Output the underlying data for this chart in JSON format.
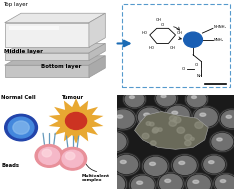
{
  "bg_color": "#ffffff",
  "top_left": {
    "labels": [
      "Top layer",
      "Middle layer",
      "Bottom layer"
    ]
  },
  "top_right": {
    "box_color": "#5599cc",
    "arrow_color": "#1a6bb5",
    "dot_color": "#1a5fb4"
  },
  "bottom_left": {
    "normal_cell_outer": "#2244aa",
    "normal_cell_inner": "#4488dd",
    "normal_cell_light": "#88bbee",
    "tumour_color": "#e8a832",
    "tumour_center_color": "#cc3322",
    "bead_color": "#f5b8c8",
    "bead_light": "#fdd8e0",
    "linker_color": "#6699bb"
  },
  "bottom_right": {
    "bg": "#1a1a1a",
    "sphere_dark": "#404040",
    "sphere_mid": "#808080",
    "sphere_light": "#c0c0c0",
    "sphere_ring": "#e0e0e0",
    "debris_color": "#909080"
  }
}
